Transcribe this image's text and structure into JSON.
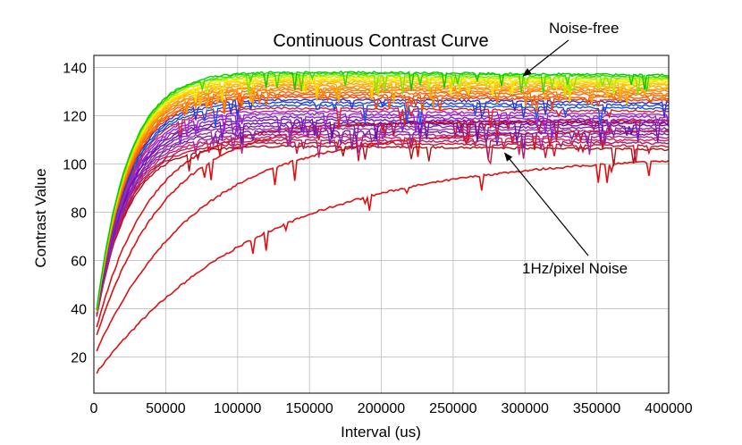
{
  "chart_data": {
    "type": "line",
    "title": "Continuous Contrast Curve",
    "xlabel": "Interval (us)",
    "ylabel": "Contrast Value",
    "xlim": [
      0,
      400000
    ],
    "ylim": [
      5,
      145
    ],
    "xticks": [
      0,
      50000,
      100000,
      150000,
      200000,
      250000,
      300000,
      350000,
      400000
    ],
    "yticks": [
      20,
      40,
      60,
      80,
      100,
      120,
      140
    ],
    "grid": true,
    "series_note": "Family of 36 curves: y = start + (plateau - start) * (1 - exp(-x / tau)), from Noise-free (top, green) to 1Hz/pixel Noise (bottom, red)",
    "series": [
      {
        "name": "curve-1",
        "color": "#00cc00",
        "start": 30,
        "plateau": 139,
        "tau": 22000
      },
      {
        "name": "curve-2",
        "color": "#33dd00",
        "start": 30,
        "plateau": 138.4,
        "tau": 22000
      },
      {
        "name": "curve-3",
        "color": "#77ee00",
        "start": 30,
        "plateau": 137.8,
        "tau": 22000
      },
      {
        "name": "curve-4",
        "color": "#bbee00",
        "start": 30,
        "plateau": 137.2,
        "tau": 22000
      },
      {
        "name": "curve-5",
        "color": "#ffee00",
        "start": 30,
        "plateau": 136.6,
        "tau": 22000
      },
      {
        "name": "curve-6",
        "color": "#ffdd00",
        "start": 30,
        "plateau": 136.0,
        "tau": 22000
      },
      {
        "name": "curve-7",
        "color": "#ffcc00",
        "start": 30,
        "plateau": 135.4,
        "tau": 22000
      },
      {
        "name": "curve-8",
        "color": "#ffbb00",
        "start": 30,
        "plateau": 134.8,
        "tau": 22000
      },
      {
        "name": "curve-9",
        "color": "#ffaa00",
        "start": 30,
        "plateau": 134.0,
        "tau": 22000
      },
      {
        "name": "curve-10",
        "color": "#ff9900",
        "start": 30,
        "plateau": 133.2,
        "tau": 22000
      },
      {
        "name": "curve-11",
        "color": "#ff8800",
        "start": 30,
        "plateau": 132.4,
        "tau": 22000
      },
      {
        "name": "curve-12",
        "color": "#ff7700",
        "start": 30,
        "plateau": 131.6,
        "tau": 22000
      },
      {
        "name": "curve-13",
        "color": "#ff6600",
        "start": 30,
        "plateau": 130.6,
        "tau": 22000
      },
      {
        "name": "curve-14",
        "color": "#ff5500",
        "start": 30,
        "plateau": 129.6,
        "tau": 22000
      },
      {
        "name": "curve-15",
        "color": "#ee4400",
        "start": 30,
        "plateau": 128.6,
        "tau": 22000
      },
      {
        "name": "curve-16",
        "color": "#3333cc",
        "start": 30,
        "plateau": 127.6,
        "tau": 22000
      },
      {
        "name": "curve-17",
        "color": "#2244dd",
        "start": 30,
        "plateau": 126.4,
        "tau": 22000
      },
      {
        "name": "curve-18",
        "color": "#1155ee",
        "start": 30,
        "plateau": 125.2,
        "tau": 22000
      },
      {
        "name": "curve-19",
        "color": "#dd2222",
        "start": 30,
        "plateau": 124.0,
        "tau": 22000
      },
      {
        "name": "curve-20",
        "color": "#aa22cc",
        "start": 30,
        "plateau": 122.8,
        "tau": 22000
      },
      {
        "name": "curve-21",
        "color": "#9922cc",
        "start": 30,
        "plateau": 121.6,
        "tau": 22000
      },
      {
        "name": "curve-22",
        "color": "#8822cc",
        "start": 30,
        "plateau": 120.4,
        "tau": 22000
      },
      {
        "name": "curve-23",
        "color": "#7711bb",
        "start": 30,
        "plateau": 119.2,
        "tau": 22000
      },
      {
        "name": "curve-24",
        "color": "#6611aa",
        "start": 30,
        "plateau": 118.0,
        "tau": 22000
      },
      {
        "name": "curve-25",
        "color": "#8822aa",
        "start": 30,
        "plateau": 116.8,
        "tau": 22000
      },
      {
        "name": "curve-26",
        "color": "#9933aa",
        "start": 30,
        "plateau": 115.6,
        "tau": 22000
      },
      {
        "name": "curve-27",
        "color": "#7722aa",
        "start": 30,
        "plateau": 114.4,
        "tau": 22000
      },
      {
        "name": "curve-28",
        "color": "#aa2299",
        "start": 30,
        "plateau": 113.2,
        "tau": 22000
      },
      {
        "name": "curve-29",
        "color": "#cc2255",
        "start": 30,
        "plateau": 112.0,
        "tau": 22000
      },
      {
        "name": "curve-30",
        "color": "#aa2266",
        "start": 30,
        "plateau": 110.8,
        "tau": 22000
      },
      {
        "name": "curve-31",
        "color": "#cc1133",
        "start": 30,
        "plateau": 109.6,
        "tau": 22000
      },
      {
        "name": "curve-32",
        "color": "#aa1111",
        "start": 30,
        "plateau": 108.2,
        "tau": 22000
      },
      {
        "name": "curve-33",
        "color": "#dd1111",
        "start": 28,
        "plateau": 117.0,
        "tau": 38000
      },
      {
        "name": "curve-34",
        "color": "#dd1111",
        "start": 25,
        "plateau": 118.0,
        "tau": 48000
      },
      {
        "name": "curve-35",
        "color": "#dd1111",
        "start": 20,
        "plateau": 114.0,
        "tau": 70000
      },
      {
        "name": "curve-36",
        "color": "#dd1111",
        "start": 12,
        "plateau": 104.0,
        "tau": 115000
      }
    ],
    "annotations": [
      {
        "text": "Noise-free",
        "points_to": [
          300000,
          138
        ]
      },
      {
        "text": "1Hz/pixel Noise",
        "points_to": [
          284000,
          106
        ]
      }
    ]
  }
}
